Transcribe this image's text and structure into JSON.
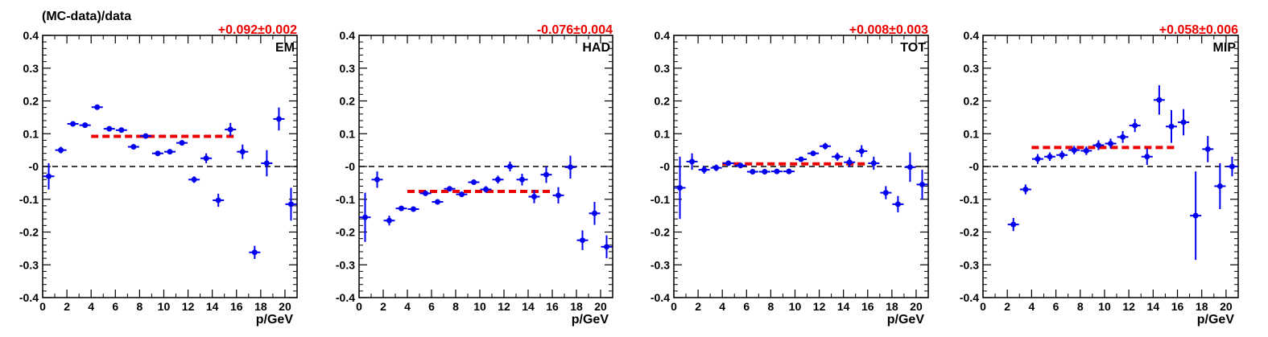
{
  "figure": {
    "ylabel": "(MC-data)/data"
  },
  "colors": {
    "points": "#0000ee",
    "fit": "#ee0000",
    "zero_line": "#000000",
    "frame": "#000000"
  },
  "chart_data": [
    {
      "type": "scatter",
      "title": "EM",
      "fit_label": "+0.092±0.002",
      "xlabel": "p/GeV",
      "xlim": [
        0,
        21
      ],
      "ylim": [
        -0.4,
        0.4
      ],
      "xticks": [
        "0",
        "2",
        "4",
        "6",
        "8",
        "10",
        "12",
        "14",
        "16",
        "18",
        "20"
      ],
      "yticks": [
        "-0.4",
        "-0.3",
        "-0.2",
        "-0.1",
        "-0",
        "0.1",
        "0.2",
        "0.3",
        "0.4"
      ],
      "fit": {
        "value": 0.092,
        "x_range": [
          4,
          16
        ]
      },
      "zero_line": 0,
      "points": [
        {
          "x": 0.5,
          "y": -0.03,
          "err": 0.04
        },
        {
          "x": 1.5,
          "y": 0.05,
          "err": 0.01
        },
        {
          "x": 2.5,
          "y": 0.13,
          "err": 0.005
        },
        {
          "x": 3.5,
          "y": 0.126,
          "err": 0.005
        },
        {
          "x": 4.5,
          "y": 0.181,
          "err": 0.005
        },
        {
          "x": 5.5,
          "y": 0.115,
          "err": 0.005
        },
        {
          "x": 6.5,
          "y": 0.111,
          "err": 0.005
        },
        {
          "x": 7.5,
          "y": 0.06,
          "err": 0.005
        },
        {
          "x": 8.5,
          "y": 0.093,
          "err": 0.005
        },
        {
          "x": 9.5,
          "y": 0.04,
          "err": 0.006
        },
        {
          "x": 10.5,
          "y": 0.045,
          "err": 0.006
        },
        {
          "x": 11.5,
          "y": 0.072,
          "err": 0.008
        },
        {
          "x": 12.5,
          "y": -0.04,
          "err": 0.01
        },
        {
          "x": 13.5,
          "y": 0.025,
          "err": 0.015
        },
        {
          "x": 14.5,
          "y": -0.103,
          "err": 0.02
        },
        {
          "x": 15.5,
          "y": 0.113,
          "err": 0.02
        },
        {
          "x": 16.5,
          "y": 0.045,
          "err": 0.022
        },
        {
          "x": 17.5,
          "y": -0.262,
          "err": 0.02
        },
        {
          "x": 18.5,
          "y": 0.01,
          "err": 0.04
        },
        {
          "x": 19.5,
          "y": 0.145,
          "err": 0.035
        },
        {
          "x": 20.5,
          "y": -0.115,
          "err": 0.05
        }
      ]
    },
    {
      "type": "scatter",
      "title": "HAD",
      "fit_label": "-0.076±0.004",
      "xlabel": "p/GeV",
      "xlim": [
        0,
        21
      ],
      "ylim": [
        -0.4,
        0.4
      ],
      "xticks": [
        "0",
        "2",
        "4",
        "6",
        "8",
        "10",
        "12",
        "14",
        "16",
        "18",
        "20"
      ],
      "yticks": [
        "-0.4",
        "-0.3",
        "-0.2",
        "-0.1",
        "-0",
        "0.1",
        "0.2",
        "0.3",
        "0.4"
      ],
      "fit": {
        "value": -0.076,
        "x_range": [
          4,
          16
        ]
      },
      "zero_line": 0,
      "points": [
        {
          "x": 0.5,
          "y": -0.155,
          "err": 0.075
        },
        {
          "x": 1.5,
          "y": -0.04,
          "err": 0.025
        },
        {
          "x": 2.5,
          "y": -0.165,
          "err": 0.015
        },
        {
          "x": 3.5,
          "y": -0.128,
          "err": 0.008
        },
        {
          "x": 4.5,
          "y": -0.13,
          "err": 0.006
        },
        {
          "x": 5.5,
          "y": -0.082,
          "err": 0.006
        },
        {
          "x": 6.5,
          "y": -0.108,
          "err": 0.006
        },
        {
          "x": 7.5,
          "y": -0.068,
          "err": 0.006
        },
        {
          "x": 8.5,
          "y": -0.085,
          "err": 0.006
        },
        {
          "x": 9.5,
          "y": -0.048,
          "err": 0.008
        },
        {
          "x": 10.5,
          "y": -0.07,
          "err": 0.01
        },
        {
          "x": 11.5,
          "y": -0.04,
          "err": 0.012
        },
        {
          "x": 12.5,
          "y": 0.0,
          "err": 0.015
        },
        {
          "x": 13.5,
          "y": -0.04,
          "err": 0.018
        },
        {
          "x": 14.5,
          "y": -0.092,
          "err": 0.02
        },
        {
          "x": 15.5,
          "y": -0.025,
          "err": 0.025
        },
        {
          "x": 16.5,
          "y": -0.088,
          "err": 0.025
        },
        {
          "x": 17.5,
          "y": -0.002,
          "err": 0.035
        },
        {
          "x": 18.5,
          "y": -0.225,
          "err": 0.03
        },
        {
          "x": 19.5,
          "y": -0.143,
          "err": 0.035
        },
        {
          "x": 20.5,
          "y": -0.245,
          "err": 0.035
        }
      ]
    },
    {
      "type": "scatter",
      "title": "TOT",
      "fit_label": "+0.008±0.003",
      "xlabel": "p/GeV",
      "xlim": [
        0,
        21
      ],
      "ylim": [
        -0.4,
        0.4
      ],
      "xticks": [
        "0",
        "2",
        "4",
        "6",
        "8",
        "10",
        "12",
        "14",
        "16",
        "18",
        "20"
      ],
      "yticks": [
        "-0.4",
        "-0.3",
        "-0.2",
        "-0.1",
        "-0",
        "0.1",
        "0.2",
        "0.3",
        "0.4"
      ],
      "fit": {
        "value": 0.008,
        "x_range": [
          4,
          16
        ]
      },
      "zero_line": 0,
      "points": [
        {
          "x": 0.5,
          "y": -0.065,
          "err": 0.095
        },
        {
          "x": 1.5,
          "y": 0.015,
          "err": 0.025
        },
        {
          "x": 2.5,
          "y": -0.01,
          "err": 0.012
        },
        {
          "x": 3.5,
          "y": -0.004,
          "err": 0.01
        },
        {
          "x": 4.5,
          "y": 0.01,
          "err": 0.006
        },
        {
          "x": 5.5,
          "y": 0.003,
          "err": 0.005
        },
        {
          "x": 6.5,
          "y": -0.016,
          "err": 0.005
        },
        {
          "x": 7.5,
          "y": -0.016,
          "err": 0.005
        },
        {
          "x": 8.5,
          "y": -0.015,
          "err": 0.005
        },
        {
          "x": 9.5,
          "y": -0.015,
          "err": 0.006
        },
        {
          "x": 10.5,
          "y": 0.022,
          "err": 0.007
        },
        {
          "x": 11.5,
          "y": 0.04,
          "err": 0.008
        },
        {
          "x": 12.5,
          "y": 0.062,
          "err": 0.01
        },
        {
          "x": 13.5,
          "y": 0.03,
          "err": 0.012
        },
        {
          "x": 14.5,
          "y": 0.013,
          "err": 0.015
        },
        {
          "x": 15.5,
          "y": 0.047,
          "err": 0.018
        },
        {
          "x": 16.5,
          "y": 0.01,
          "err": 0.02
        },
        {
          "x": 17.5,
          "y": -0.08,
          "err": 0.02
        },
        {
          "x": 18.5,
          "y": -0.115,
          "err": 0.025
        },
        {
          "x": 19.5,
          "y": -0.002,
          "err": 0.045
        },
        {
          "x": 20.5,
          "y": -0.055,
          "err": 0.045
        }
      ]
    },
    {
      "type": "scatter",
      "title": "MIP",
      "fit_label": "+0.058±0.006",
      "xlabel": "p/GeV",
      "xlim": [
        0,
        21
      ],
      "ylim": [
        -0.4,
        0.4
      ],
      "xticks": [
        "0",
        "2",
        "4",
        "6",
        "8",
        "10",
        "12",
        "14",
        "16",
        "18",
        "20"
      ],
      "yticks": [
        "-0.4",
        "-0.3",
        "-0.2",
        "-0.1",
        "-0",
        "0.1",
        "0.2",
        "0.3",
        "0.4"
      ],
      "fit": {
        "value": 0.058,
        "x_range": [
          4,
          16
        ]
      },
      "zero_line": 0,
      "points": [
        {
          "x": 2.5,
          "y": -0.177,
          "err": 0.02
        },
        {
          "x": 3.5,
          "y": -0.07,
          "err": 0.015
        },
        {
          "x": 4.5,
          "y": 0.023,
          "err": 0.015
        },
        {
          "x": 5.5,
          "y": 0.03,
          "err": 0.013
        },
        {
          "x": 6.5,
          "y": 0.035,
          "err": 0.013
        },
        {
          "x": 7.5,
          "y": 0.05,
          "err": 0.013
        },
        {
          "x": 8.5,
          "y": 0.048,
          "err": 0.013
        },
        {
          "x": 9.5,
          "y": 0.065,
          "err": 0.015
        },
        {
          "x": 10.5,
          "y": 0.07,
          "err": 0.015
        },
        {
          "x": 11.5,
          "y": 0.09,
          "err": 0.018
        },
        {
          "x": 12.5,
          "y": 0.125,
          "err": 0.02
        },
        {
          "x": 13.5,
          "y": 0.03,
          "err": 0.025
        },
        {
          "x": 14.5,
          "y": 0.203,
          "err": 0.045
        },
        {
          "x": 15.5,
          "y": 0.122,
          "err": 0.05
        },
        {
          "x": 16.5,
          "y": 0.135,
          "err": 0.04
        },
        {
          "x": 17.5,
          "y": -0.15,
          "err": 0.135
        },
        {
          "x": 18.5,
          "y": 0.053,
          "err": 0.04
        },
        {
          "x": 19.5,
          "y": -0.06,
          "err": 0.07
        },
        {
          "x": 20.5,
          "y": 0.0,
          "err": 0.03
        }
      ]
    }
  ]
}
